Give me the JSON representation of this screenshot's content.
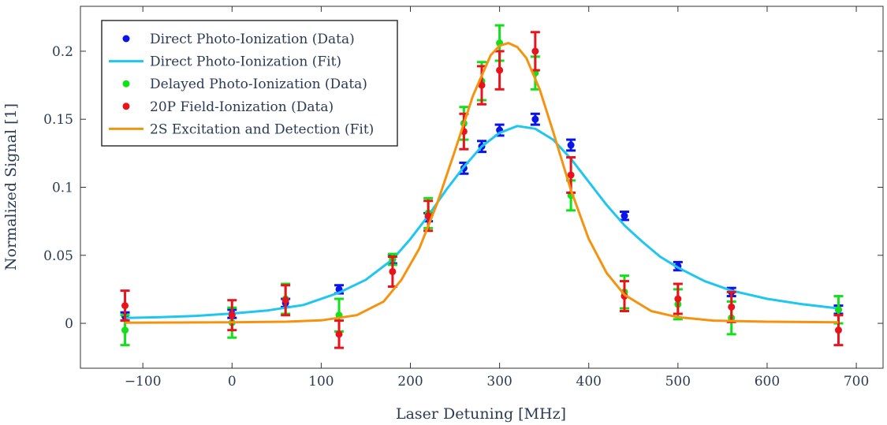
{
  "chart_data": {
    "type": "scatter",
    "xlabel": "Laser Detuning [MHz]",
    "ylabel": "Normalized Signal [1]",
    "xlim": [
      -170,
      730
    ],
    "ylim": [
      -0.033,
      0.233
    ],
    "x_ticks": [
      {
        "value": -100,
        "label": "−100"
      },
      {
        "value": 0,
        "label": "0"
      },
      {
        "value": 100,
        "label": "100"
      },
      {
        "value": 200,
        "label": "200"
      },
      {
        "value": 300,
        "label": "300"
      },
      {
        "value": 400,
        "label": "400"
      },
      {
        "value": 500,
        "label": "500"
      },
      {
        "value": 600,
        "label": "600"
      },
      {
        "value": 700,
        "label": "700"
      }
    ],
    "y_ticks": [
      {
        "value": 0,
        "label": "0"
      },
      {
        "value": 0.05,
        "label": "0.05"
      },
      {
        "value": 0.1,
        "label": "0.1"
      },
      {
        "value": 0.15,
        "label": "0.15"
      },
      {
        "value": 0.2,
        "label": "0.2"
      }
    ],
    "legend_position": "top-left",
    "series": [
      {
        "name": "Direct Photo-Ionization (Data)",
        "kind": "scatter",
        "color": "#0a14e6",
        "points": [
          {
            "x": -120,
            "y": 0.005,
            "err": 0.003
          },
          {
            "x": 0,
            "y": 0.007,
            "err": 0.003
          },
          {
            "x": 60,
            "y": 0.015,
            "err": 0.003
          },
          {
            "x": 120,
            "y": 0.025,
            "err": 0.003
          },
          {
            "x": 180,
            "y": 0.047,
            "err": 0.003
          },
          {
            "x": 220,
            "y": 0.078,
            "err": 0.003
          },
          {
            "x": 260,
            "y": 0.114,
            "err": 0.004
          },
          {
            "x": 280,
            "y": 0.13,
            "err": 0.004
          },
          {
            "x": 300,
            "y": 0.142,
            "err": 0.004
          },
          {
            "x": 340,
            "y": 0.15,
            "err": 0.004
          },
          {
            "x": 380,
            "y": 0.131,
            "err": 0.004
          },
          {
            "x": 440,
            "y": 0.079,
            "err": 0.003
          },
          {
            "x": 500,
            "y": 0.042,
            "err": 0.003
          },
          {
            "x": 560,
            "y": 0.023,
            "err": 0.003
          },
          {
            "x": 680,
            "y": 0.01,
            "err": 0.003
          }
        ]
      },
      {
        "name": "Direct Photo-Ionization (Fit)",
        "kind": "line",
        "color": "#1ec6f0",
        "x": [
          -120,
          -80,
          -40,
          0,
          40,
          80,
          120,
          150,
          180,
          200,
          220,
          240,
          260,
          280,
          300,
          320,
          340,
          360,
          380,
          400,
          420,
          440,
          460,
          480,
          500,
          530,
          560,
          600,
          640,
          680
        ],
        "y": [
          0.004,
          0.0045,
          0.0055,
          0.0072,
          0.0095,
          0.0135,
          0.0225,
          0.032,
          0.047,
          0.062,
          0.079,
          0.098,
          0.115,
          0.13,
          0.14,
          0.145,
          0.143,
          0.135,
          0.121,
          0.104,
          0.087,
          0.072,
          0.06,
          0.049,
          0.041,
          0.031,
          0.024,
          0.018,
          0.014,
          0.011
        ]
      },
      {
        "name": "Delayed Photo-Ionization (Data)",
        "kind": "scatter",
        "color": "#12e01a",
        "points": [
          {
            "x": -120,
            "y": -0.005,
            "err": 0.011
          },
          {
            "x": 0,
            "y": 0.0005,
            "err": 0.011
          },
          {
            "x": 60,
            "y": 0.018,
            "err": 0.011
          },
          {
            "x": 120,
            "y": 0.006,
            "err": 0.012
          },
          {
            "x": 180,
            "y": 0.047,
            "err": 0.004
          },
          {
            "x": 220,
            "y": 0.081,
            "err": 0.011
          },
          {
            "x": 260,
            "y": 0.147,
            "err": 0.012
          },
          {
            "x": 280,
            "y": 0.178,
            "err": 0.014
          },
          {
            "x": 300,
            "y": 0.206,
            "err": 0.013
          },
          {
            "x": 340,
            "y": 0.184,
            "err": 0.012
          },
          {
            "x": 380,
            "y": 0.094,
            "err": 0.011
          },
          {
            "x": 440,
            "y": 0.023,
            "err": 0.012
          },
          {
            "x": 500,
            "y": 0.014,
            "err": 0.011
          },
          {
            "x": 560,
            "y": 0.004,
            "err": 0.012
          },
          {
            "x": 680,
            "y": 0.01,
            "err": 0.01
          }
        ]
      },
      {
        "name": "20P Field-Ionization (Data)",
        "kind": "scatter",
        "color": "#e8141c",
        "points": [
          {
            "x": -120,
            "y": 0.013,
            "err": 0.011
          },
          {
            "x": 0,
            "y": 0.006,
            "err": 0.011
          },
          {
            "x": 60,
            "y": 0.017,
            "err": 0.011
          },
          {
            "x": 120,
            "y": -0.008,
            "err": 0.01
          },
          {
            "x": 180,
            "y": 0.038,
            "err": 0.011
          },
          {
            "x": 220,
            "y": 0.079,
            "err": 0.011
          },
          {
            "x": 260,
            "y": 0.141,
            "err": 0.013
          },
          {
            "x": 280,
            "y": 0.175,
            "err": 0.014
          },
          {
            "x": 300,
            "y": 0.186,
            "err": 0.014
          },
          {
            "x": 340,
            "y": 0.2,
            "err": 0.014
          },
          {
            "x": 380,
            "y": 0.109,
            "err": 0.013
          },
          {
            "x": 440,
            "y": 0.02,
            "err": 0.011
          },
          {
            "x": 500,
            "y": 0.018,
            "err": 0.011
          },
          {
            "x": 560,
            "y": 0.012,
            "err": 0.011
          },
          {
            "x": 680,
            "y": -0.005,
            "err": 0.011
          }
        ]
      },
      {
        "name": "2S Excitation and Detection (Fit)",
        "kind": "line",
        "color": "#f5930f",
        "x": [
          -120,
          -60,
          0,
          60,
          100,
          140,
          170,
          190,
          210,
          230,
          250,
          270,
          290,
          300,
          310,
          320,
          330,
          345,
          360,
          380,
          400,
          420,
          440,
          470,
          500,
          540,
          600,
          680
        ],
        "y": [
          0.0005,
          0.0006,
          0.0008,
          0.0012,
          0.0022,
          0.006,
          0.016,
          0.032,
          0.055,
          0.088,
          0.127,
          0.167,
          0.197,
          0.204,
          0.206,
          0.203,
          0.195,
          0.172,
          0.141,
          0.098,
          0.062,
          0.037,
          0.021,
          0.009,
          0.0045,
          0.002,
          0.0012,
          0.0008
        ]
      }
    ]
  }
}
